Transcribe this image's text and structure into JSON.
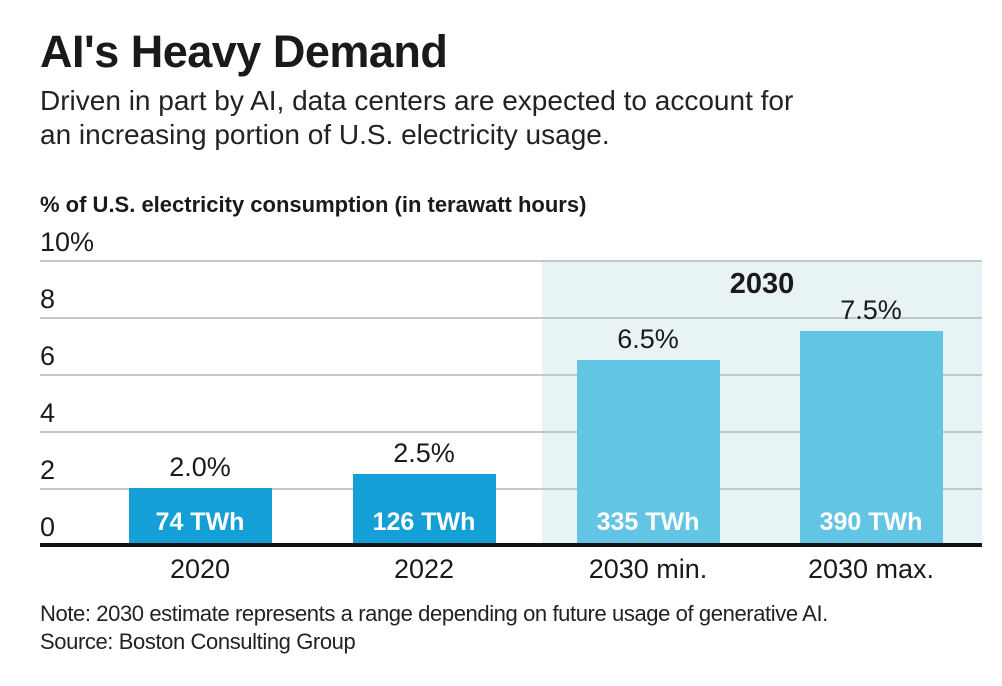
{
  "header": {
    "title": "AI's Heavy Demand",
    "subtitle_lines": [
      "Driven in part by AI, data centers are expected to account for",
      "an increasing portion of U.S. electricity usage."
    ]
  },
  "footer": {
    "note": "Note: 2030 estimate represents a range depending on future usage of generative AI.",
    "source": "Source: Boston Consulting Group"
  },
  "chart_data": {
    "type": "bar",
    "title": "AI's Heavy Demand",
    "axis_title": "% of U.S. electricity consumption (in terawatt hours)",
    "ylabel": "% of U.S. electricity consumption",
    "unit_note": "in terawatt hours",
    "ylim": [
      0,
      10
    ],
    "grid": true,
    "yticks": {
      "values": [
        10,
        8,
        6,
        4,
        2,
        0
      ],
      "labels": [
        "10%",
        "8",
        "6",
        "4",
        "2",
        "0"
      ]
    },
    "categories": [
      "2020",
      "2022",
      "2030 min.",
      "2030 max."
    ],
    "bars": [
      {
        "category": "2020",
        "value": 2.0,
        "pct_label": "2.0%",
        "twh_label": "74 TWh",
        "projected": false
      },
      {
        "category": "2022",
        "value": 2.5,
        "pct_label": "2.5%",
        "twh_label": "126 TWh",
        "projected": false
      },
      {
        "category": "2030 min.",
        "value": 6.5,
        "pct_label": "6.5%",
        "twh_label": "335 TWh",
        "projected": true
      },
      {
        "category": "2030 max.",
        "value": 7.5,
        "pct_label": "7.5%",
        "twh_label": "390 TWh",
        "projected": true
      }
    ],
    "projection_region": {
      "label": "2030",
      "covers": [
        "2030 min.",
        "2030 max."
      ]
    },
    "colors": {
      "bar_actual": "#149fd6",
      "bar_projected": "#63c5e4",
      "region_tint": "#e8f3f6",
      "gridline": "#c3c7c9",
      "baseline": "#111111",
      "text": "#1a1a1a",
      "bar_label_text": "#ffffff"
    }
  }
}
